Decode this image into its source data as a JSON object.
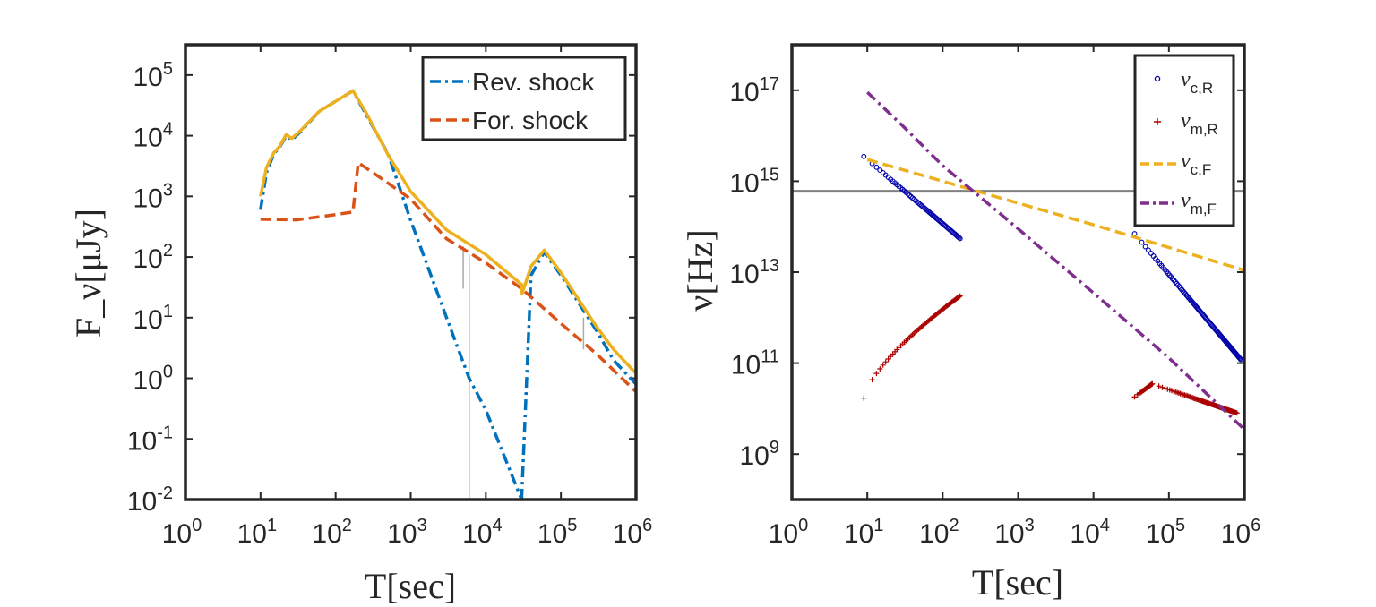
{
  "chart_data": [
    {
      "type": "line",
      "xlabel": "T[sec]",
      "ylabel": "F_ν[μJy]",
      "xscale": "log",
      "yscale": "log",
      "xlim": [
        1,
        1000000
      ],
      "ylim": [
        0.01,
        316228
      ],
      "xticks": [
        {
          "base": "10",
          "exp": "0",
          "value": 1
        },
        {
          "base": "10",
          "exp": "1",
          "value": 10
        },
        {
          "base": "10",
          "exp": "2",
          "value": 100
        },
        {
          "base": "10",
          "exp": "3",
          "value": 1000
        },
        {
          "base": "10",
          "exp": "4",
          "value": 10000
        },
        {
          "base": "10",
          "exp": "5",
          "value": 100000
        },
        {
          "base": "10",
          "exp": "6",
          "value": 1000000
        }
      ],
      "yticks": [
        {
          "base": "10",
          "exp": "-2",
          "value": 0.01
        },
        {
          "base": "10",
          "exp": "-1",
          "value": 0.1
        },
        {
          "base": "10",
          "exp": "0",
          "value": 1
        },
        {
          "base": "10",
          "exp": "1",
          "value": 10
        },
        {
          "base": "10",
          "exp": "2",
          "value": 100
        },
        {
          "base": "10",
          "exp": "3",
          "value": 1000
        },
        {
          "base": "10",
          "exp": "4",
          "value": 10000
        },
        {
          "base": "10",
          "exp": "5",
          "value": 100000
        }
      ],
      "legend_position": "top-right",
      "series": [
        {
          "name": "Rev. shock",
          "color": "#0072BD",
          "style": "dash-dot",
          "segments": [
            [
              [
                10,
                600
              ],
              [
                12,
                2500
              ],
              [
                15,
                5000
              ],
              [
                18,
                6500
              ],
              [
                22,
                10000
              ],
              [
                26,
                8500
              ],
              [
                35,
                12000
              ],
              [
                60,
                25000
              ],
              [
                100,
                37000
              ],
              [
                170,
                55000
              ],
              [
                500,
                5000
              ],
              [
                1000,
                400
              ],
              [
                3000,
                10
              ],
              [
                6000,
                1.0
              ],
              [
                10000,
                0.3
              ],
              [
                30000,
                0.01
              ]
            ],
            [
              [
                30000,
                0.01
              ],
              [
                40000,
                50
              ],
              [
                60000,
                120
              ],
              [
                100000,
                50
              ],
              [
                300000,
                6
              ],
              [
                500000,
                2
              ],
              [
                1000000,
                0.8
              ]
            ]
          ]
        },
        {
          "name": "For. shock",
          "color": "#D95319",
          "style": "dash",
          "segments": [
            [
              [
                10,
                420
              ],
              [
                30,
                410
              ],
              [
                100,
                500
              ],
              [
                170,
                550
              ],
              [
                200,
                3600
              ],
              [
                400,
                2000
              ],
              [
                1000,
                900
              ],
              [
                3000,
                200
              ],
              [
                10000,
                80
              ],
              [
                30000,
                30
              ],
              [
                100000,
                8
              ],
              [
                300000,
                2.5
              ],
              [
                1000000,
                0.6
              ]
            ]
          ]
        },
        {
          "color": "#EDB120",
          "style": "solid",
          "segments": [
            [
              [
                10,
                1000
              ],
              [
                12,
                3000
              ],
              [
                15,
                5200
              ],
              [
                18,
                6700
              ],
              [
                22,
                10500
              ],
              [
                26,
                9000
              ],
              [
                35,
                12500
              ],
              [
                60,
                25000
              ],
              [
                100,
                37000
              ],
              [
                170,
                55000
              ],
              [
                250,
                25000
              ],
              [
                500,
                4800
              ],
              [
                1000,
                1200
              ],
              [
                3000,
                280
              ],
              [
                10000,
                110
              ],
              [
                30000,
                35
              ],
              [
                30500,
                25
              ],
              [
                40000,
                70
              ],
              [
                60000,
                130
              ],
              [
                100000,
                55
              ],
              [
                300000,
                7
              ],
              [
                500000,
                3
              ],
              [
                1000000,
                1.2
              ]
            ]
          ]
        }
      ],
      "annotation_lines": [
        {
          "x": 5000,
          "y0": 30,
          "y1": 150,
          "color": "#AAAAAA"
        },
        {
          "x": 6000,
          "y0": 0.01,
          "y1": 110,
          "color": "#AAAAAA"
        },
        {
          "x": 200000,
          "y0": 3,
          "y1": 10,
          "color": "#AAAAAA"
        }
      ]
    },
    {
      "type": "line",
      "xlabel": "T[sec]",
      "ylabel": "ν[Hz]",
      "xscale": "log",
      "yscale": "log",
      "xlim": [
        1,
        1000000
      ],
      "ylim": [
        100000000,
        1e+18
      ],
      "xticks": [
        {
          "base": "10",
          "exp": "0",
          "value": 1
        },
        {
          "base": "10",
          "exp": "1",
          "value": 10
        },
        {
          "base": "10",
          "exp": "2",
          "value": 100
        },
        {
          "base": "10",
          "exp": "3",
          "value": 1000
        },
        {
          "base": "10",
          "exp": "4",
          "value": 10000
        },
        {
          "base": "10",
          "exp": "5",
          "value": 100000
        },
        {
          "base": "10",
          "exp": "6",
          "value": 1000000
        }
      ],
      "yticks": [
        {
          "base": "10",
          "exp": "9",
          "value": 1000000000.0
        },
        {
          "base": "10",
          "exp": "11",
          "value": 100000000000.0
        },
        {
          "base": "10",
          "exp": "13",
          "value": 10000000000000.0
        },
        {
          "base": "10",
          "exp": "15",
          "value": 1000000000000000.0
        },
        {
          "base": "10",
          "exp": "17",
          "value": 1e+17
        }
      ],
      "legend_position": "top-right",
      "reference_line": {
        "y": 600000000000000.0,
        "color": "#808080"
      },
      "series": [
        {
          "name": "ν",
          "subscript": "c,R",
          "color": "#0000AA",
          "style": "circle",
          "segments": [
            {
              "x0": 9,
              "x1": 170,
              "y0": 3500000000000000.0,
              "y1": 55000000000000.0,
              "n": 60
            },
            {
              "x0": 35000,
              "x1": 900000,
              "y0": 70000000000000.0,
              "y1": 120000000000.0,
              "n": 90
            }
          ]
        },
        {
          "name": "ν",
          "subscript": "m,R",
          "color": "#AA0000",
          "style": "plus",
          "segments": [
            {
              "x0": 9,
              "x1": 170,
              "y0": 17000000000.0,
              "y1": 3000000000000.0,
              "n": 60
            },
            {
              "x0": 35000,
              "x1": 60000,
              "y0": 18000000000.0,
              "y1": 35000000000.0,
              "n": 20
            },
            {
              "x0": 60000,
              "x1": 800000,
              "y0": 35000000000.0,
              "y1": 8000000000.0,
              "n": 70
            }
          ]
        },
        {
          "name": "ν",
          "subscript": "c,F",
          "color": "#EDB120",
          "style": "dash",
          "segments": [
            [
              [
                10,
                3000000000000000.0
              ],
              [
                100,
                1000000000000000.0
              ],
              [
                1000,
                330000000000000.0
              ],
              [
                10000,
                110000000000000.0
              ],
              [
                100000,
                35000000000000.0
              ],
              [
                1000000,
                11000000000000.0
              ]
            ]
          ]
        },
        {
          "name": "ν",
          "subscript": "m,F",
          "color": "#7E2F8E",
          "style": "dash-dot",
          "segments": [
            [
              [
                10,
                9e+16
              ],
              [
                30,
                1.6e+16
              ],
              [
                100,
                2200000000000000.0
              ],
              [
                1000,
                90000000000000.0
              ],
              [
                10000,
                3500000000000.0
              ],
              [
                100000,
                130000000000.0
              ],
              [
                1000000,
                3500000000.0
              ]
            ]
          ]
        }
      ]
    }
  ]
}
